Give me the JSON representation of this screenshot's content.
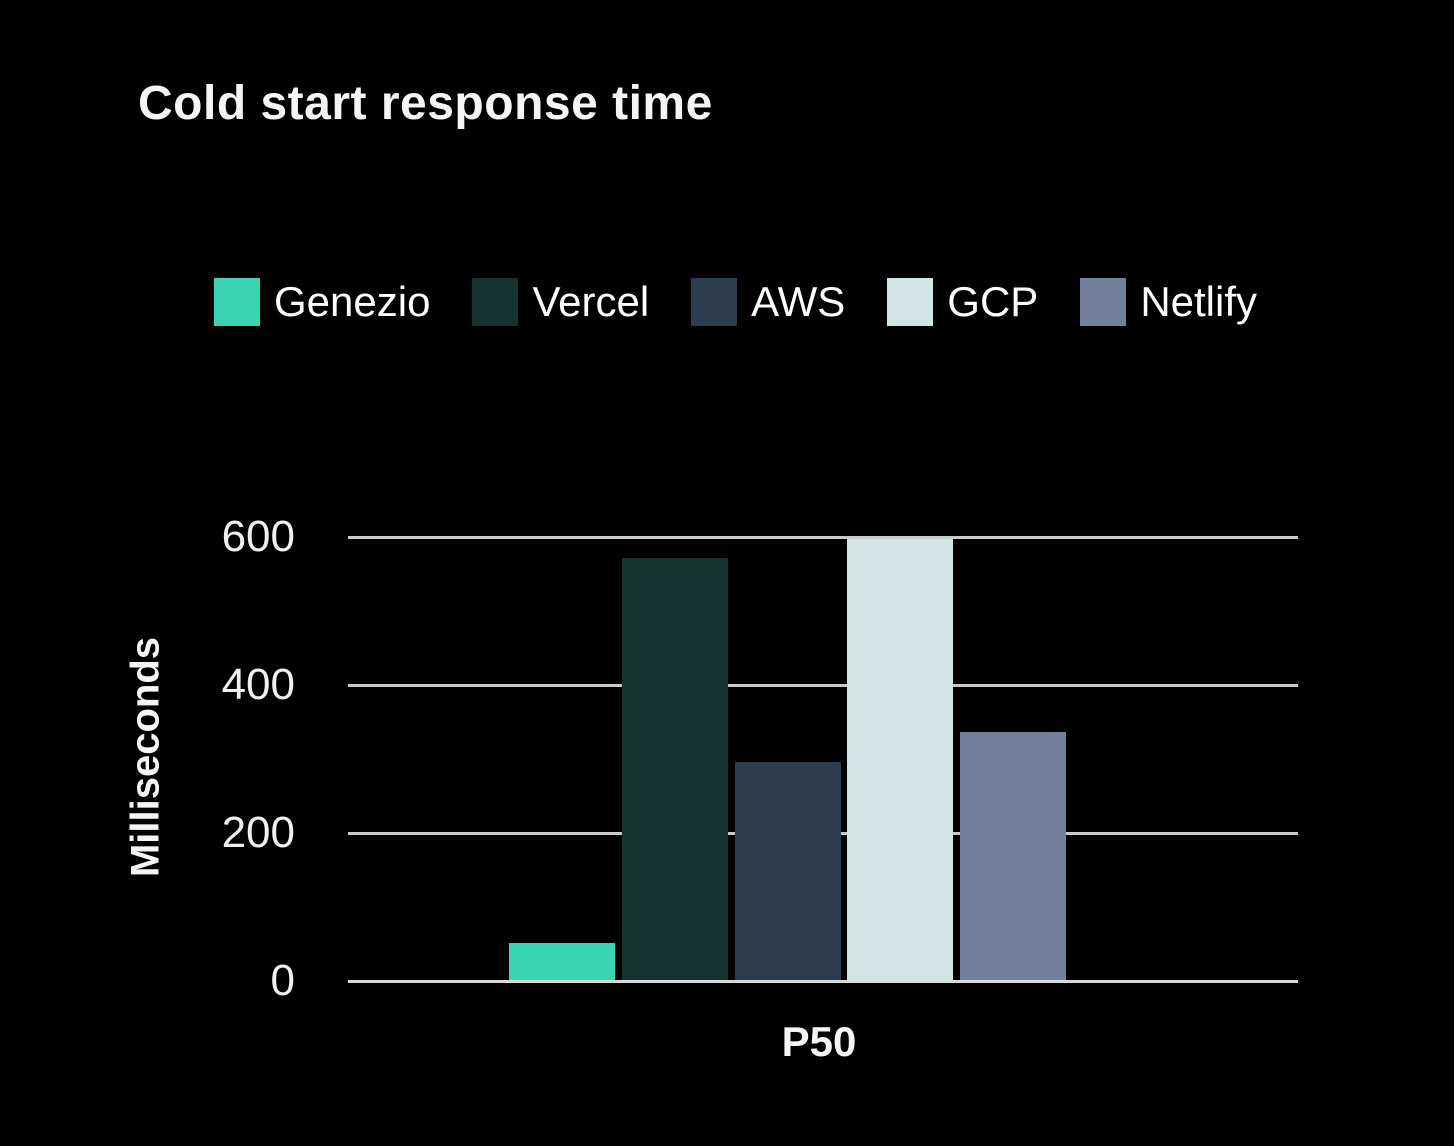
{
  "chart_data": {
    "type": "bar",
    "title": "Cold start response time",
    "y_axis_title": "Milliseconds",
    "x_category": "P50",
    "categories": [
      "P50"
    ],
    "series": [
      {
        "name": "Genezio",
        "value": 50,
        "color": "#39d5b1"
      },
      {
        "name": "Vercel",
        "value": 570,
        "color": "#15332f"
      },
      {
        "name": "AWS",
        "value": 295,
        "color": "#2d3c4e"
      },
      {
        "name": "GCP",
        "value": 600,
        "color": "#d3e4e4"
      },
      {
        "name": "Netlify",
        "value": 335,
        "color": "#72809b"
      }
    ],
    "y_ticks": [
      0,
      200,
      400,
      600
    ],
    "ylim": [
      0,
      600
    ],
    "grid": "horizontal",
    "legend_position": "top",
    "background_color": "#000000",
    "gridline_color": "#c9c9c9",
    "axis_line_color": "#d9d9d9",
    "text_color": "#f5f5f5"
  }
}
